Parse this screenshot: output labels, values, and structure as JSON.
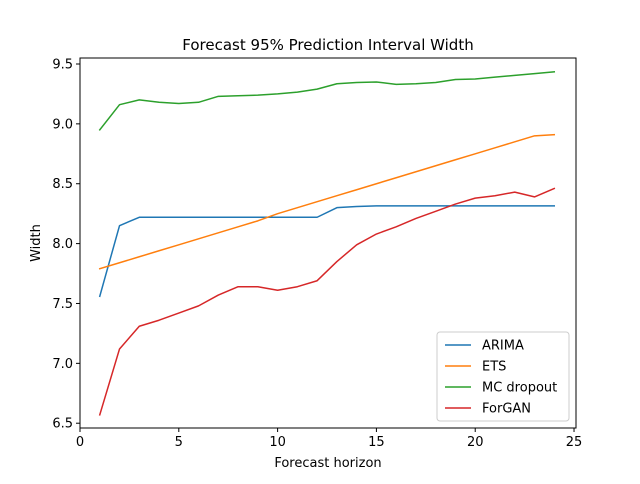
{
  "chart_data": {
    "type": "line",
    "title": "Forecast 95% Prediction Interval Width",
    "xlabel": "Forecast horizon",
    "ylabel": "Width",
    "xlim": [
      0,
      25.1
    ],
    "ylim": [
      6.46,
      9.55
    ],
    "xticks": [
      0,
      5,
      10,
      15,
      20,
      25
    ],
    "xtick_labels": [
      "0",
      "5",
      "10",
      "15",
      "20",
      "25"
    ],
    "yticks": [
      6.5,
      7.0,
      7.5,
      8.0,
      8.5,
      9.0,
      9.5
    ],
    "ytick_labels": [
      "6.5",
      "7.0",
      "7.5",
      "8.0",
      "8.5",
      "9.0",
      "9.5"
    ],
    "grid": false,
    "legend_position": "bottom-right",
    "x": [
      1,
      2,
      3,
      4,
      5,
      6,
      7,
      8,
      9,
      10,
      11,
      12,
      13,
      14,
      15,
      16,
      17,
      18,
      19,
      20,
      21,
      22,
      23,
      24
    ],
    "series": [
      {
        "name": "ARIMA",
        "color": "#1f77b4",
        "values": [
          7.56,
          8.15,
          8.22,
          8.22,
          8.22,
          8.22,
          8.22,
          8.22,
          8.22,
          8.22,
          8.22,
          8.22,
          8.3,
          8.31,
          8.315,
          8.315,
          8.315,
          8.315,
          8.315,
          8.315,
          8.315,
          8.315,
          8.315,
          8.315
        ]
      },
      {
        "name": "ETS",
        "color": "#ff7f0e",
        "values": [
          7.79,
          7.84,
          7.89,
          7.94,
          7.99,
          8.04,
          8.09,
          8.14,
          8.19,
          8.25,
          8.3,
          8.35,
          8.4,
          8.45,
          8.5,
          8.55,
          8.6,
          8.65,
          8.7,
          8.75,
          8.8,
          8.85,
          8.9,
          8.91
        ]
      },
      {
        "name": "MC dropout",
        "color": "#2ca02c",
        "values": [
          8.95,
          9.16,
          9.2,
          9.18,
          9.17,
          9.18,
          9.23,
          9.235,
          9.24,
          9.25,
          9.265,
          9.29,
          9.335,
          9.345,
          9.35,
          9.33,
          9.335,
          9.345,
          9.37,
          9.375,
          9.39,
          9.405,
          9.42,
          9.435
        ]
      },
      {
        "name": "ForGAN",
        "color": "#d62728",
        "values": [
          6.57,
          7.12,
          7.31,
          7.36,
          7.42,
          7.48,
          7.57,
          7.64,
          7.64,
          7.61,
          7.64,
          7.69,
          7.85,
          7.99,
          8.08,
          8.14,
          8.21,
          8.27,
          8.33,
          8.38,
          8.4,
          8.43,
          8.39,
          8.46
        ]
      }
    ]
  }
}
